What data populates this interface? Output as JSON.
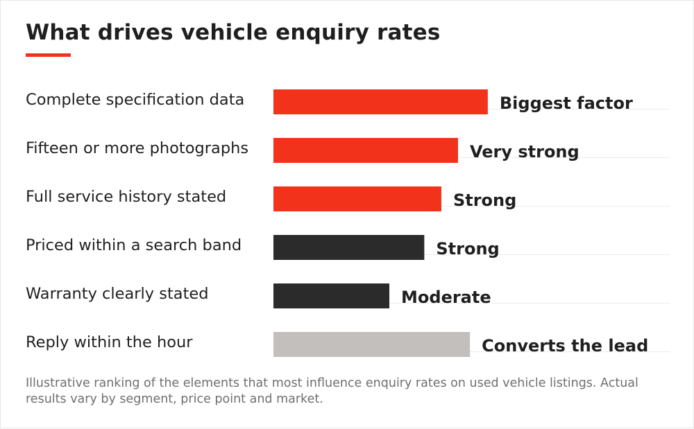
{
  "header": {
    "title": "What drives vehicle enquiry rates"
  },
  "footer": {
    "note": "Illustrative ranking of the elements that most influence enquiry rates on used vehicle listings. Actual results vary by segment, price point and market."
  },
  "colors": {
    "accent": "#f2321b",
    "dark": "#2b2b2b",
    "neutral": "#c2bfbc",
    "text": "#1f1f1f",
    "muted": "#6f6f6f",
    "gridline": "#ececec"
  },
  "chart_data": {
    "type": "bar",
    "orientation": "horizontal",
    "title": "What drives vehicle enquiry rates",
    "xlim": [
      0,
      100
    ],
    "grid": false,
    "legend": "none",
    "categories": [
      "Complete specification data",
      "Fifteen or more photographs",
      "Full service history stated",
      "Priced within a search band",
      "Warranty clearly stated",
      "Reply within the hour"
    ],
    "values": [
      54,
      46.5,
      42.3,
      38,
      29.2,
      49.5
    ],
    "data_labels": [
      "Biggest factor",
      "Very strong",
      "Strong",
      "Strong",
      "Moderate",
      "Converts the lead"
    ],
    "bar_colors": [
      "#f2321b",
      "#f2321b",
      "#f2321b",
      "#2b2b2b",
      "#2b2b2b",
      "#c2bfbc"
    ]
  }
}
